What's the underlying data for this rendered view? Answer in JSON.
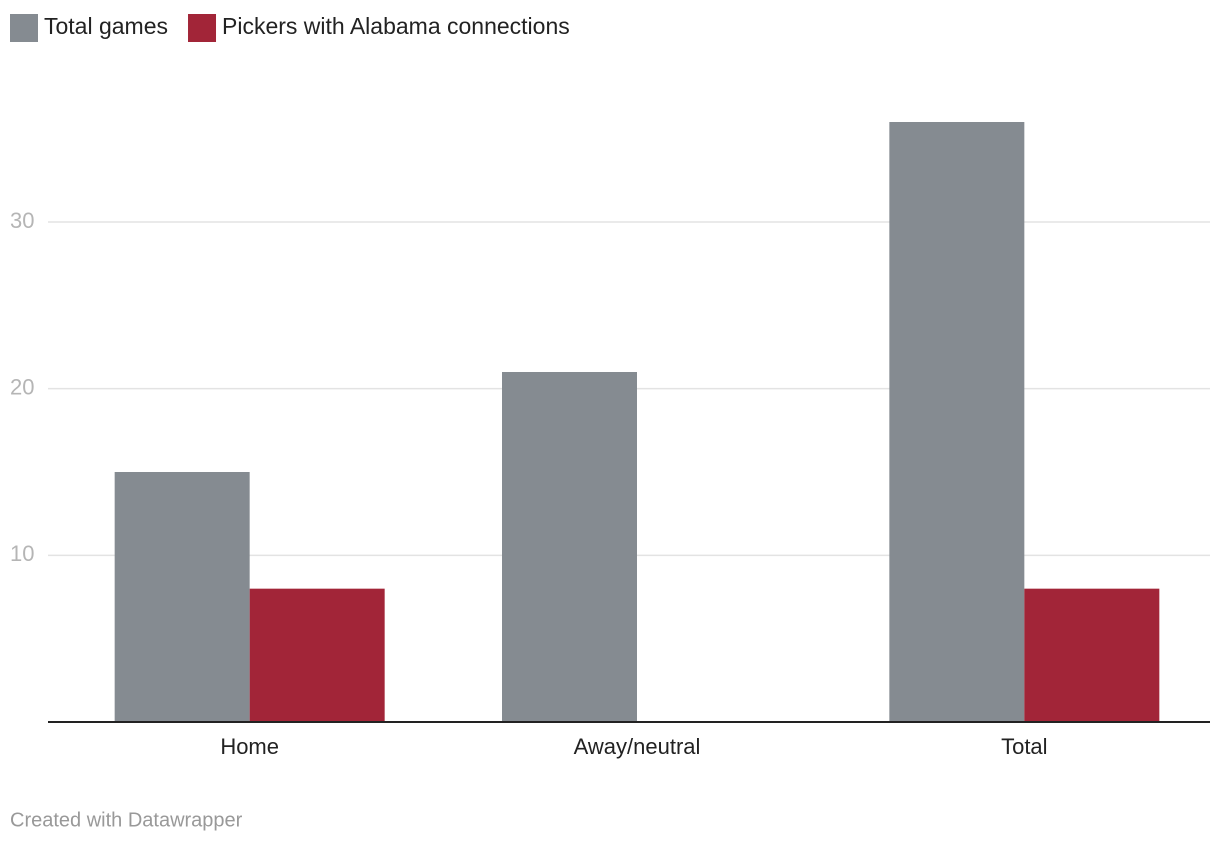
{
  "chart_data": {
    "type": "bar",
    "categories": [
      "Home",
      "Away/neutral",
      "Total"
    ],
    "series": [
      {
        "name": "Total games",
        "color": "#858b91",
        "values": [
          15,
          21,
          36
        ]
      },
      {
        "name": "Pickers with Alabama connections",
        "color": "#a22538",
        "values": [
          8,
          0,
          8
        ]
      }
    ],
    "ylim": [
      0,
      36
    ],
    "yticks": [
      10,
      20,
      30
    ],
    "grid": true,
    "footer": "Created with Datawrapper"
  }
}
